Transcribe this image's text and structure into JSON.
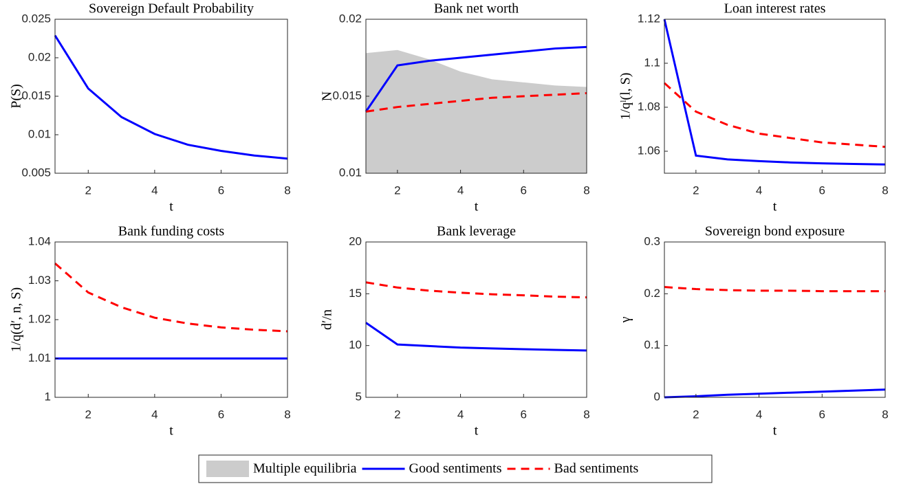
{
  "chart_data": [
    {
      "type": "line",
      "title": "Sovereign Default Probability",
      "xlabel": "t",
      "ylabel": "P(S)",
      "x": [
        1,
        2,
        3,
        4,
        5,
        6,
        7,
        8
      ],
      "xlim": [
        1,
        8
      ],
      "xticks": [
        2,
        4,
        6,
        8
      ],
      "ylim": [
        0.005,
        0.025
      ],
      "yticks": [
        0.005,
        0.01,
        0.015,
        0.02,
        0.025
      ],
      "series": [
        {
          "color": "#0000ff",
          "values": [
            0.0229,
            0.016,
            0.0123,
            0.0101,
            0.0087,
            0.0079,
            0.0073,
            0.0069
          ]
        }
      ]
    },
    {
      "type": "line",
      "title": "Bank net worth",
      "xlabel": "t",
      "ylabel": "N",
      "x": [
        1,
        2,
        3,
        4,
        5,
        6,
        7,
        8
      ],
      "xlim": [
        1,
        8
      ],
      "xticks": [
        2,
        4,
        6,
        8
      ],
      "ylim": [
        0.01,
        0.02
      ],
      "yticks": [
        0.01,
        0.015,
        0.02
      ],
      "series": [
        {
          "name": "Multiple equilibria",
          "type": "area",
          "color": "#cccccc",
          "values": [
            0.0178,
            0.018,
            0.0174,
            0.0166,
            0.0161,
            0.0159,
            0.0157,
            0.0156
          ]
        },
        {
          "name": "Good sentiments",
          "color": "#0000ff",
          "values": [
            0.014,
            0.017,
            0.0173,
            0.0175,
            0.0177,
            0.0179,
            0.0181,
            0.0182
          ]
        },
        {
          "name": "Bad sentiments",
          "color": "#ff0000",
          "dashed": true,
          "values": [
            0.014,
            0.0143,
            0.0145,
            0.0147,
            0.0149,
            0.015,
            0.0151,
            0.0152
          ]
        }
      ]
    },
    {
      "type": "line",
      "title": "Loan interest rates",
      "xlabel": "t",
      "ylabel": "1/qˡ(l, S)",
      "x": [
        1,
        2,
        3,
        4,
        5,
        6,
        7,
        8
      ],
      "xlim": [
        1,
        8
      ],
      "xticks": [
        2,
        4,
        6,
        8
      ],
      "ylim": [
        1.05,
        1.12
      ],
      "yticks": [
        1.06,
        1.08,
        1.1,
        1.12
      ],
      "series": [
        {
          "color": "#0000ff",
          "values": [
            1.12,
            1.058,
            1.0563,
            1.0555,
            1.0549,
            1.0545,
            1.0542,
            1.054
          ]
        },
        {
          "color": "#ff0000",
          "dashed": true,
          "values": [
            1.091,
            1.078,
            1.072,
            1.068,
            1.066,
            1.064,
            1.063,
            1.062
          ]
        }
      ]
    },
    {
      "type": "line",
      "title": "Bank funding costs",
      "xlabel": "t",
      "ylabel": "1/q(d′, n, S)",
      "x": [
        1,
        2,
        3,
        4,
        5,
        6,
        7,
        8
      ],
      "xlim": [
        1,
        8
      ],
      "xticks": [
        2,
        4,
        6,
        8
      ],
      "ylim": [
        1,
        1.04
      ],
      "yticks": [
        1,
        1.01,
        1.02,
        1.03,
        1.04
      ],
      "series": [
        {
          "color": "#0000ff",
          "values": [
            1.01,
            1.01,
            1.01,
            1.01,
            1.01,
            1.01,
            1.01,
            1.01
          ]
        },
        {
          "color": "#ff0000",
          "dashed": true,
          "values": [
            1.0345,
            1.027,
            1.0232,
            1.0205,
            1.019,
            1.018,
            1.0174,
            1.017
          ]
        }
      ]
    },
    {
      "type": "line",
      "title": "Bank leverage",
      "xlabel": "t",
      "ylabel": "d′/n",
      "x": [
        1,
        2,
        3,
        4,
        5,
        6,
        7,
        8
      ],
      "xlim": [
        1,
        8
      ],
      "xticks": [
        2,
        4,
        6,
        8
      ],
      "ylim": [
        5,
        20
      ],
      "yticks": [
        5,
        10,
        15,
        20
      ],
      "series": [
        {
          "color": "#0000ff",
          "values": [
            12.2,
            10.1,
            9.95,
            9.8,
            9.72,
            9.65,
            9.58,
            9.52
          ]
        },
        {
          "color": "#ff0000",
          "dashed": true,
          "values": [
            16.1,
            15.6,
            15.3,
            15.1,
            14.95,
            14.85,
            14.72,
            14.65
          ]
        }
      ]
    },
    {
      "type": "line",
      "title": "Sovereign bond exposure",
      "xlabel": "t",
      "ylabel": "γ",
      "x": [
        1,
        2,
        3,
        4,
        5,
        6,
        7,
        8
      ],
      "xlim": [
        1,
        8
      ],
      "xticks": [
        2,
        4,
        6,
        8
      ],
      "ylim": [
        0,
        0.3
      ],
      "yticks": [
        0,
        0.1,
        0.2,
        0.3
      ],
      "series": [
        {
          "color": "#0000ff",
          "values": [
            0,
            0.002,
            0.005,
            0.007,
            0.009,
            0.011,
            0.013,
            0.015
          ]
        },
        {
          "color": "#ff0000",
          "dashed": true,
          "values": [
            0.213,
            0.209,
            0.207,
            0.206,
            0.206,
            0.205,
            0.205,
            0.205
          ]
        }
      ]
    }
  ]
}
